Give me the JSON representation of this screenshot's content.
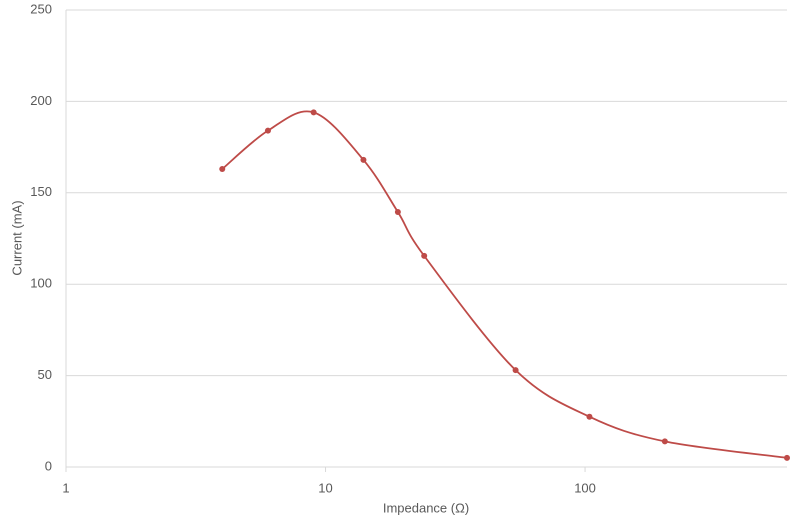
{
  "chart_data": {
    "type": "line",
    "x_label": "Impedance (Ω)",
    "y_label": "Current (mA)",
    "x": [
      4,
      6,
      9,
      14,
      19,
      24,
      54,
      104,
      203,
      600
    ],
    "series": [
      {
        "color": "#be4b48",
        "values": [
          163,
          184,
          194,
          168,
          139.5,
          115.5,
          53,
          27.5,
          14,
          5
        ]
      }
    ],
    "xscale": "log",
    "xlim": [
      1,
      600
    ],
    "xticks": [
      1,
      10,
      100
    ],
    "ylim": [
      0,
      250
    ],
    "yticks": [
      0,
      50,
      100,
      150,
      200,
      250
    ],
    "grid": true,
    "smooth": true
  }
}
